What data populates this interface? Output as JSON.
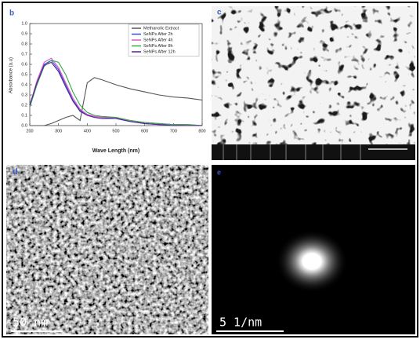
{
  "chart_data": {
    "type": "line",
    "panel_label": "b",
    "x_label": "Wave Length (nm)",
    "y_label": "Absorbance (a.u)",
    "x": [
      200,
      225,
      250,
      275,
      300,
      325,
      350,
      375,
      400,
      425,
      450,
      500,
      550,
      600,
      650,
      700,
      750,
      800
    ],
    "series": [
      {
        "name": "Methanolic Extract",
        "color": "#555555",
        "values": [
          0.0,
          0.0,
          0.0,
          0.02,
          0.05,
          0.08,
          0.1,
          0.05,
          0.42,
          0.47,
          0.45,
          0.4,
          0.36,
          0.33,
          0.3,
          0.28,
          0.27,
          0.25
        ]
      },
      {
        "name": "SeNPs After  2h",
        "color": "#3355dd",
        "values": [
          0.2,
          0.42,
          0.6,
          0.64,
          0.55,
          0.4,
          0.25,
          0.15,
          0.1,
          0.09,
          0.08,
          0.07,
          0.04,
          0.02,
          0.01,
          0.01,
          0.0,
          0.0
        ]
      },
      {
        "name": "SeNPs After  4h",
        "color": "#dd55cc",
        "values": [
          0.2,
          0.44,
          0.62,
          0.66,
          0.57,
          0.42,
          0.27,
          0.16,
          0.11,
          0.09,
          0.08,
          0.08,
          0.05,
          0.03,
          0.02,
          0.01,
          0.01,
          0.0
        ]
      },
      {
        "name": "SeNPs After  8h",
        "color": "#33aa44",
        "values": [
          0.18,
          0.4,
          0.58,
          0.64,
          0.62,
          0.5,
          0.33,
          0.2,
          0.13,
          0.1,
          0.09,
          0.08,
          0.05,
          0.03,
          0.02,
          0.01,
          0.01,
          0.0
        ]
      },
      {
        "name": "SeNPs After  12h",
        "color": "#552299",
        "values": [
          0.2,
          0.42,
          0.59,
          0.62,
          0.53,
          0.38,
          0.24,
          0.14,
          0.1,
          0.08,
          0.07,
          0.07,
          0.04,
          0.02,
          0.01,
          0.0,
          0.0,
          0.0
        ]
      }
    ],
    "xlim": [
      200,
      800
    ],
    "xticks": [
      200,
      300,
      400,
      500,
      600,
      700,
      800
    ],
    "ylim": [
      0,
      1
    ],
    "yticks": [
      {
        "value": 0,
        "label": "0.0"
      },
      0.1,
      0.2,
      0.3,
      0.4,
      0.5,
      0.6,
      0.7,
      0.8,
      0.9,
      {
        "value": 1,
        "label": "1.0"
      }
    ],
    "legend": "upper right"
  },
  "panels": [
    {
      "label": "c"
    },
    {
      "label": "d",
      "scale_bar": "50 nm"
    },
    {
      "label": "e",
      "scale_bar": "5 1/nm"
    }
  ]
}
